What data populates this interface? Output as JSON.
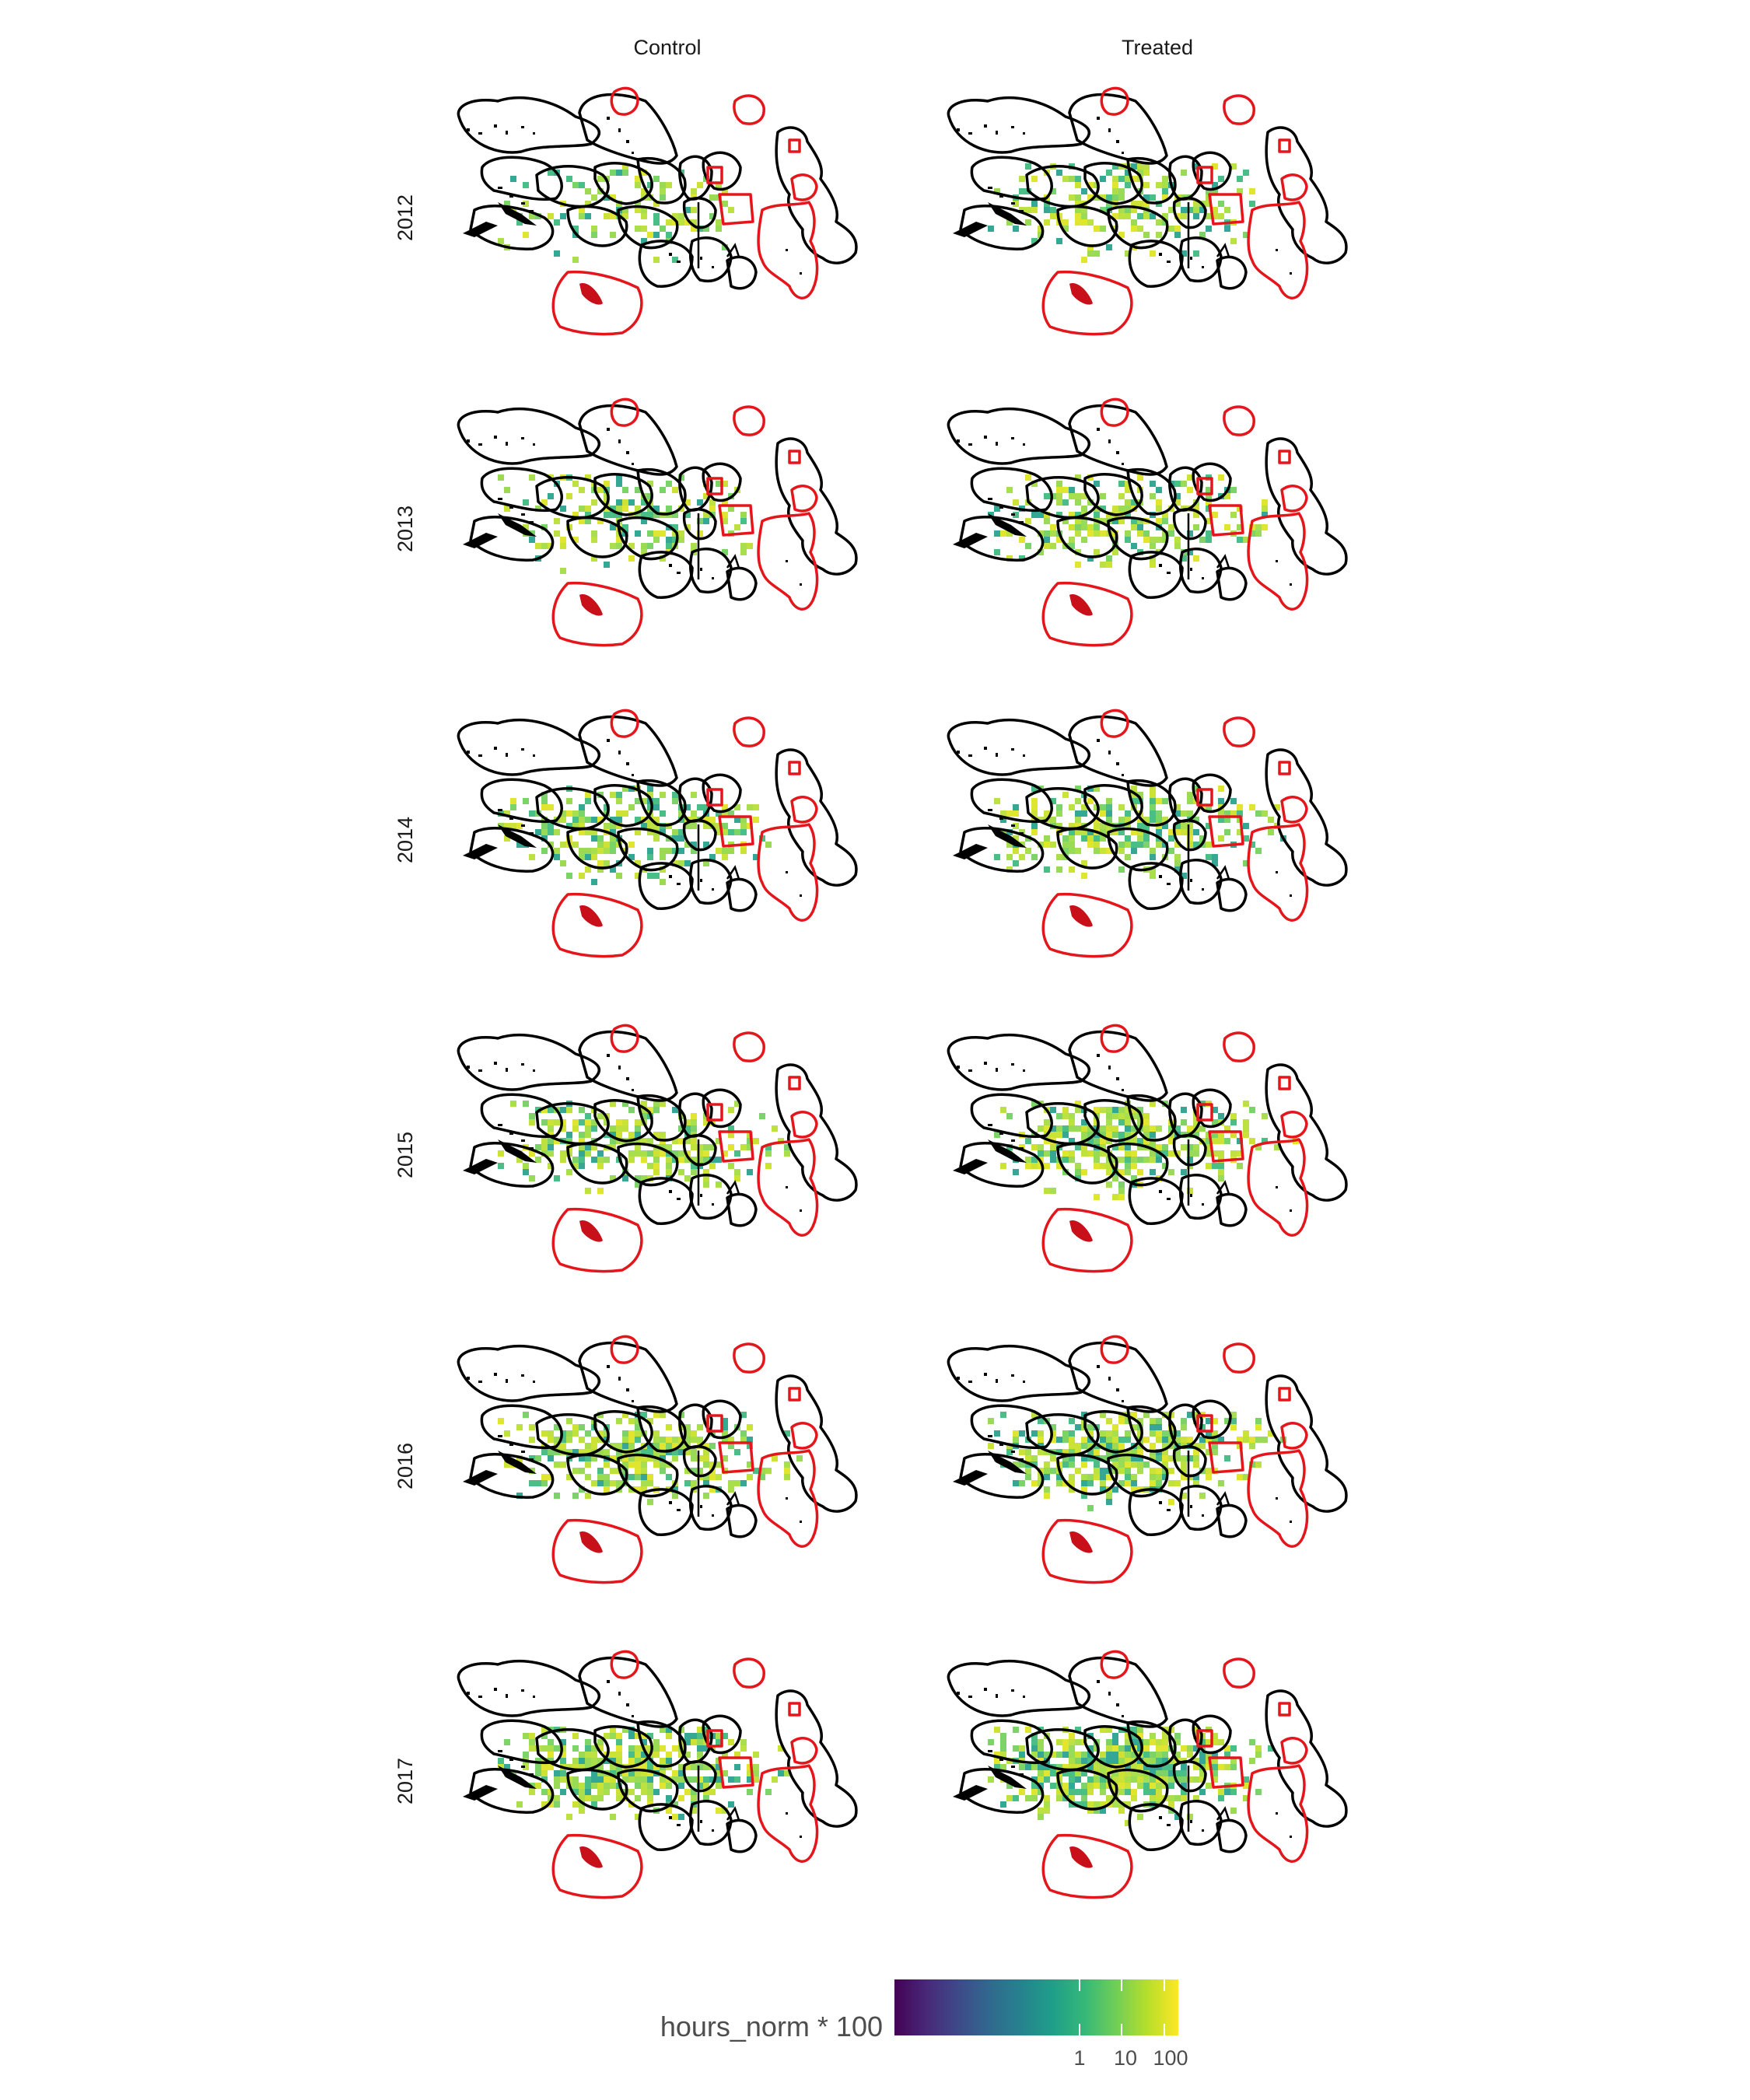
{
  "columns": [
    "Control",
    "Treated"
  ],
  "rows": [
    "2012",
    "2013",
    "2014",
    "2015",
    "2016",
    "2017"
  ],
  "legend": {
    "title": "hours_norm * 100",
    "ticks": [
      "1",
      "10",
      "100"
    ],
    "colors": [
      "#440154",
      "#482878",
      "#3e4989",
      "#31688e",
      "#26828e",
      "#1f9e89",
      "#35b779",
      "#6ece58",
      "#b5de2b",
      "#fde725"
    ]
  },
  "colors": {
    "control_boundary": "#000000",
    "treated_boundary": "#e4161b",
    "background": "#ffffff"
  },
  "map_layers": [
    "black-eez-outlines",
    "red-eez-outlines",
    "islands",
    "fishing-effort-raster"
  ]
}
